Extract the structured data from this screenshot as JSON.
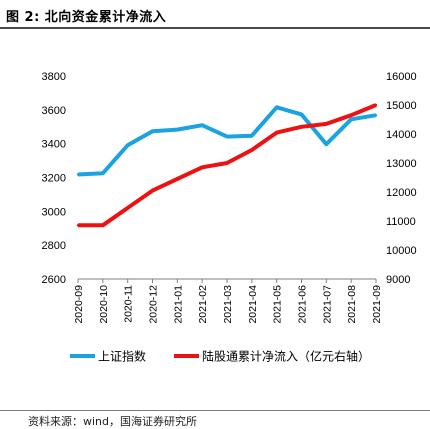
{
  "figure_title": "图 2:  北向资金累计净流入",
  "source_note": "资料来源：wind，国海证券研究所",
  "chart_data": {
    "type": "line",
    "title": "",
    "categories": [
      "2020-09",
      "2020-10",
      "2020-11",
      "2020-12",
      "2021-01",
      "2021-02",
      "2021-03",
      "2021-04",
      "2021-05",
      "2021-06",
      "2021-07",
      "2021-08",
      "2021-09"
    ],
    "y_left": {
      "ticks": [
        2600,
        2800,
        3000,
        3200,
        3400,
        3600,
        3800
      ],
      "ylim": [
        2600,
        3800
      ]
    },
    "y_right": {
      "ticks": [
        9000,
        10000,
        11000,
        12000,
        13000,
        14000,
        15000,
        16000
      ],
      "ylim": [
        9000,
        16000
      ]
    },
    "series": [
      {
        "name": "上证指数",
        "axis": "left",
        "color": "#1aa3e0",
        "values": [
          3218,
          3225,
          3391,
          3473,
          3483,
          3509,
          3442,
          3447,
          3615,
          3573,
          3397,
          3544,
          3568
        ]
      },
      {
        "name": "陆股通累计净流入（亿元右轴）",
        "axis": "right",
        "color": "#ee1111",
        "values": [
          10850,
          10850,
          11450,
          12050,
          12450,
          12850,
          13000,
          13450,
          14050,
          14250,
          14350,
          14650,
          15000
        ]
      }
    ],
    "legend_position": "bottom",
    "grid": false
  }
}
